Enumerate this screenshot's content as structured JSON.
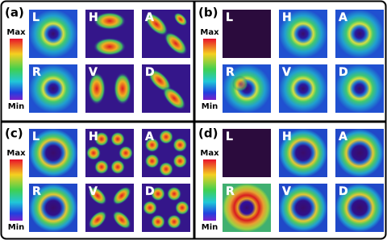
{
  "panels": [
    {
      "label": "(a)",
      "colorbar": {
        "max": "Max",
        "min": "Min"
      },
      "tiles": [
        "L",
        "H",
        "A",
        "R",
        "V",
        "D"
      ]
    },
    {
      "label": "(b)",
      "colorbar": {
        "max": "Max",
        "min": "Min"
      },
      "tiles": [
        "L",
        "H",
        "A",
        "R",
        "V",
        "D"
      ]
    },
    {
      "label": "(c)",
      "colorbar": {
        "max": "Max",
        "min": "Min"
      },
      "tiles": [
        "L",
        "H",
        "A",
        "R",
        "V",
        "D"
      ]
    },
    {
      "label": "(d)",
      "colorbar": {
        "max": "Max",
        "min": "Min"
      },
      "tiles": [
        "L",
        "H",
        "A",
        "R",
        "V",
        "D"
      ]
    }
  ]
}
